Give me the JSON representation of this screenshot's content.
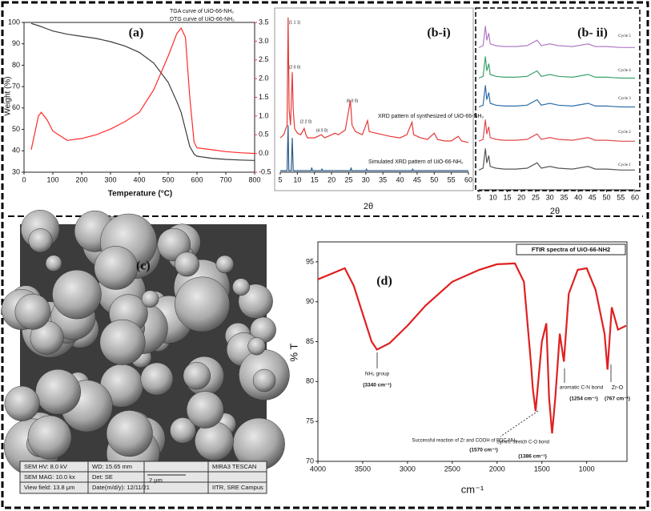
{
  "chart_data": [
    {
      "type": "line",
      "label": "(a)",
      "xlabel": "Temperature (°C)",
      "ylabel": "Weight (%)",
      "x": [
        25,
        50,
        60,
        80,
        100,
        150,
        200,
        250,
        300,
        350,
        400,
        450,
        500,
        530,
        545,
        560,
        575,
        590,
        600,
        650,
        700,
        750,
        800
      ],
      "series": [
        {
          "name": "TGA curve of UiO-66-NH₂",
          "color": "#3a3a3a",
          "values": [
            99.5,
            98.5,
            98,
            97,
            96,
            94.5,
            93.5,
            92.5,
            91,
            89,
            86,
            81,
            72,
            63,
            58,
            50,
            42,
            38.5,
            37.5,
            36.5,
            36,
            35.7,
            35.5
          ]
        },
        {
          "name": "DTG curve of UiO-66-NH₂",
          "color": "#ff2a2a",
          "axis": "y2",
          "values": [
            0.1,
            1.0,
            1.1,
            0.9,
            0.6,
            0.35,
            0.4,
            0.5,
            0.65,
            0.85,
            1.1,
            1.7,
            2.6,
            3.2,
            3.35,
            3.1,
            1.5,
            0.3,
            0.15,
            0.1,
            0.05,
            0.02,
            0
          ]
        }
      ],
      "xlim": [
        0,
        800
      ],
      "xticks": [
        0,
        100,
        200,
        300,
        400,
        500,
        600,
        700,
        800
      ],
      "ylim": [
        30,
        100
      ],
      "yticks": [
        30,
        40,
        50,
        60,
        70,
        80,
        90,
        100
      ],
      "y2lim": [
        -0.5,
        3.5
      ],
      "y2ticks": [
        -0.5,
        {
          "value": 0,
          "label": "0.0"
        },
        0.5,
        {
          "value": 1,
          "label": "1.0"
        },
        1.5,
        {
          "value": 2,
          "label": "2.0"
        },
        2.5,
        {
          "value": 3,
          "label": "3.0"
        },
        3.5
      ]
    },
    {
      "type": "line",
      "label": "(b-i)",
      "xlabel": "2θ",
      "annotations": [
        "(1 1 1)",
        "(2 0 0)",
        "(2 2 0)",
        "(4 0 0)",
        "(6 0 0)",
        "XRD pattern of synthesized of UiO-66-NH₂",
        "Simulated XRD pattern of UiO-66-NH₂"
      ],
      "series": [
        {
          "color": "#e53935",
          "x": [
            5,
            6,
            7,
            7.3,
            7.6,
            8,
            8.5,
            8.8,
            9.2,
            10,
            11,
            12,
            12.5,
            13,
            15,
            17,
            18,
            19,
            21,
            22,
            24,
            25.5,
            26,
            27,
            29,
            30.5,
            31,
            33,
            35,
            37,
            40,
            42,
            43.5,
            44,
            46,
            48,
            50,
            51,
            53,
            55,
            57,
            58,
            60
          ],
          "values": [
            22,
            24,
            30,
            99,
            40,
            30,
            64,
            40,
            28,
            25,
            24,
            28,
            24,
            22,
            22,
            24,
            22,
            23,
            25,
            24,
            27,
            46,
            30,
            26,
            24,
            33,
            26,
            25,
            24,
            23,
            22,
            24,
            32,
            24,
            22,
            21,
            25,
            21,
            20,
            20,
            23,
            20,
            19
          ]
        },
        {
          "color": "#2b5c8a",
          "x": [
            5,
            7,
            7.3,
            7.5,
            8.2,
            8.5,
            8.8,
            10,
            14,
            14.2,
            14.4,
            17,
            17.2,
            17.4,
            25.5,
            25.7,
            25.9,
            30,
            30.2,
            30.4,
            43.5,
            43.7,
            43.9,
            50,
            60
          ],
          "values": [
            1,
            1,
            30,
            1,
            1,
            22,
            1,
            1,
            1,
            3,
            1,
            1,
            2,
            1,
            1,
            3,
            1,
            1,
            2,
            1,
            1,
            2,
            1,
            1,
            1
          ]
        }
      ],
      "xlim": [
        5,
        60
      ],
      "xticks": [
        5,
        10,
        15,
        20,
        25,
        30,
        35,
        40,
        45,
        50,
        55,
        60
      ],
      "ylim": [
        0,
        100
      ]
    },
    {
      "type": "line",
      "label": "(b- ii)",
      "xlabel": "2θ",
      "x": [
        5,
        6.5,
        7.3,
        7.8,
        8.5,
        9,
        11,
        14,
        18,
        22,
        25.5,
        27,
        30,
        33,
        38,
        43.5,
        46,
        50,
        55,
        60
      ],
      "series": [
        {
          "name": "Cycle 1",
          "color": "#555555",
          "values": [
            11,
            12,
            23,
            15,
            19,
            13,
            12,
            11.5,
            11.5,
            12,
            15,
            12,
            13,
            12,
            11.5,
            13,
            11.5,
            11.5,
            11,
            11
          ]
        },
        {
          "name": "Cycle 2",
          "color": "#e0494d",
          "values": [
            27,
            28,
            39,
            31,
            35,
            29,
            28,
            27.5,
            27.5,
            28,
            31,
            28,
            29,
            28,
            27.5,
            29,
            27.5,
            27.5,
            27,
            27
          ]
        },
        {
          "name": "Cycle 3",
          "color": "#2e6fa8",
          "values": [
            46,
            47,
            58,
            50,
            54,
            48,
            47,
            46.5,
            46.5,
            47,
            50,
            47,
            48,
            47,
            46.5,
            48,
            46.5,
            46.5,
            46,
            46
          ]
        },
        {
          "name": "Cycle 4",
          "color": "#3aa36a",
          "values": [
            62,
            63,
            74,
            66,
            70,
            64,
            63,
            62.5,
            62.5,
            63,
            66,
            63,
            64,
            63,
            62.5,
            64,
            62.5,
            62.5,
            62,
            62
          ]
        },
        {
          "name": "Cycle 5",
          "color": "#b07cc6",
          "values": [
            79,
            80,
            91,
            83,
            87,
            81,
            80,
            79.5,
            79.5,
            80,
            83,
            80,
            81,
            80,
            79.5,
            81,
            79.5,
            79.5,
            79,
            79
          ]
        }
      ],
      "xlim": [
        5,
        60
      ],
      "xticks": [
        5,
        10,
        15,
        20,
        25,
        30,
        35,
        40,
        45,
        50,
        55,
        60
      ],
      "ylim": [
        0,
        100
      ]
    },
    {
      "type": "line",
      "label": "(d)",
      "xlabel": "cm⁻¹",
      "ylabel": "% T",
      "legend": "FTIR spectra of UiO-66-NH2",
      "annotations": [
        "NH₂ group",
        "(3340 cm⁻¹)",
        "Successful reaction of Zr and COOH of BDC-NH₂",
        "(1570 cm⁻¹)",
        "Symm. stretch C-O bond",
        "(1386 cm⁻¹)",
        "aromatic C-N bond",
        "(1254 cm⁻¹)",
        "Zr-O",
        "(767 cm⁻¹)"
      ],
      "x": [
        4000,
        3700,
        3600,
        3500,
        3400,
        3340,
        3200,
        3000,
        2800,
        2500,
        2200,
        2000,
        1800,
        1700,
        1650,
        1620,
        1600,
        1570,
        1500,
        1450,
        1420,
        1386,
        1350,
        1300,
        1254,
        1200,
        1100,
        1000,
        900,
        800,
        767,
        720,
        650,
        560
      ],
      "series": [
        {
          "color": "#e02020",
          "values": [
            92.8,
            94.2,
            92,
            88.5,
            85,
            84,
            84.8,
            87,
            89.5,
            92.5,
            94,
            94.7,
            94.8,
            92.5,
            86,
            82,
            79,
            76.3,
            85,
            87.3,
            78,
            73.5,
            78,
            86,
            82.5,
            91,
            94,
            94.2,
            91.5,
            86,
            81.5,
            89.3,
            86.5,
            87
          ]
        }
      ],
      "xlim": [
        4000,
        550
      ],
      "xticks": [
        4000,
        3500,
        3000,
        2500,
        2000,
        1500,
        1000
      ],
      "ylim": [
        70,
        97.5
      ],
      "yticks": [
        70,
        75,
        80,
        85,
        90,
        95
      ]
    }
  ],
  "sem_panel": {
    "label": "(c)",
    "info": [
      "SEM HV: 8.0 kV",
      "WD: 15.65 mm",
      "MIRA3 TESCAN",
      "SEM MAG: 10.0 kx",
      "Det: SE",
      "2 μm",
      "View field: 13.8 μm",
      "Date(m/d/y): 12/11/21",
      "IITR, SRE Campus"
    ]
  }
}
